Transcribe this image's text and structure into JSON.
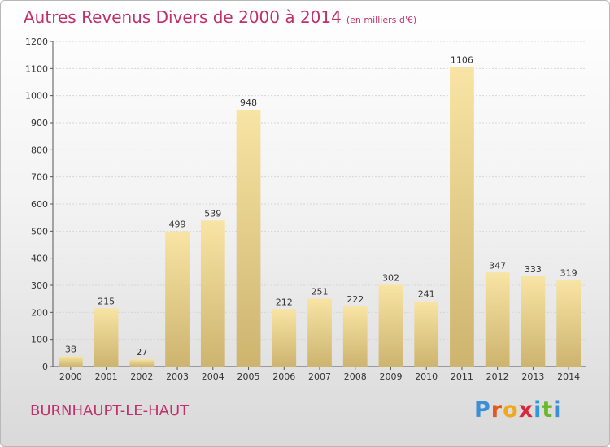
{
  "title": {
    "main": "Autres Revenus Divers de 2000 à 2014",
    "unit": "(en milliers d'€)"
  },
  "commune": "BURNHAUPT-LE-HAUT",
  "logo_text": "Proxiti",
  "colors": {
    "title": "#c0306a",
    "bar_light": "#f8e4a4",
    "bar_dark": "#cdb46f"
  },
  "chart_data": {
    "type": "bar",
    "title": "Autres Revenus Divers de 2000 à 2014",
    "subtitle": "(en milliers d'€)",
    "categories": [
      "2000",
      "2001",
      "2002",
      "2003",
      "2004",
      "2005",
      "2006",
      "2007",
      "2008",
      "2009",
      "2010",
      "2011",
      "2012",
      "2013",
      "2014"
    ],
    "values": [
      38,
      215,
      27,
      499,
      539,
      948,
      212,
      251,
      222,
      302,
      241,
      1106,
      347,
      333,
      319
    ],
    "ylim": [
      0,
      1200
    ],
    "yticks": [
      0,
      100,
      200,
      300,
      400,
      500,
      600,
      700,
      800,
      900,
      1000,
      1100,
      1200
    ],
    "grid": "horizontal",
    "data_labels": true
  }
}
